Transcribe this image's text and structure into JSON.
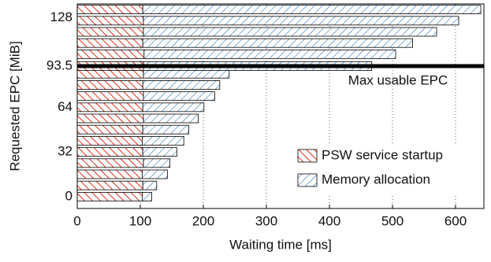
{
  "chart_data": {
    "type": "stacked-hbar",
    "xlabel": "Waiting time [ms]",
    "ylabel": "Requested EPC [MiB]",
    "y": [
      0,
      8,
      16,
      24,
      32,
      40,
      48,
      56,
      64,
      72,
      80,
      88,
      93.5,
      102,
      110,
      118,
      126,
      134
    ],
    "series": [
      {
        "name": "PSW service startup",
        "color": "#e0301e",
        "values": [
          103,
          104,
          103,
          105,
          104,
          103,
          104,
          105,
          104,
          105,
          104,
          105,
          105,
          106,
          104,
          105,
          105,
          104
        ]
      },
      {
        "name": "Memory allocation",
        "color": "#3f7fc1",
        "values": [
          15,
          22,
          40,
          42,
          54,
          66,
          73,
          87,
          97,
          113,
          122,
          136,
          362,
          399,
          428,
          465,
          500,
          536
        ]
      }
    ],
    "xlim": [
      0,
      645
    ],
    "xticks": [
      0,
      100,
      200,
      300,
      400,
      500,
      600
    ],
    "ylim": [
      -8.5,
      138
    ],
    "yticks": [
      0,
      32,
      64,
      93.5,
      128
    ],
    "grid": true,
    "threshold": {
      "value": 93.5,
      "label": "Max usable EPC"
    },
    "legend": "lower right"
  }
}
